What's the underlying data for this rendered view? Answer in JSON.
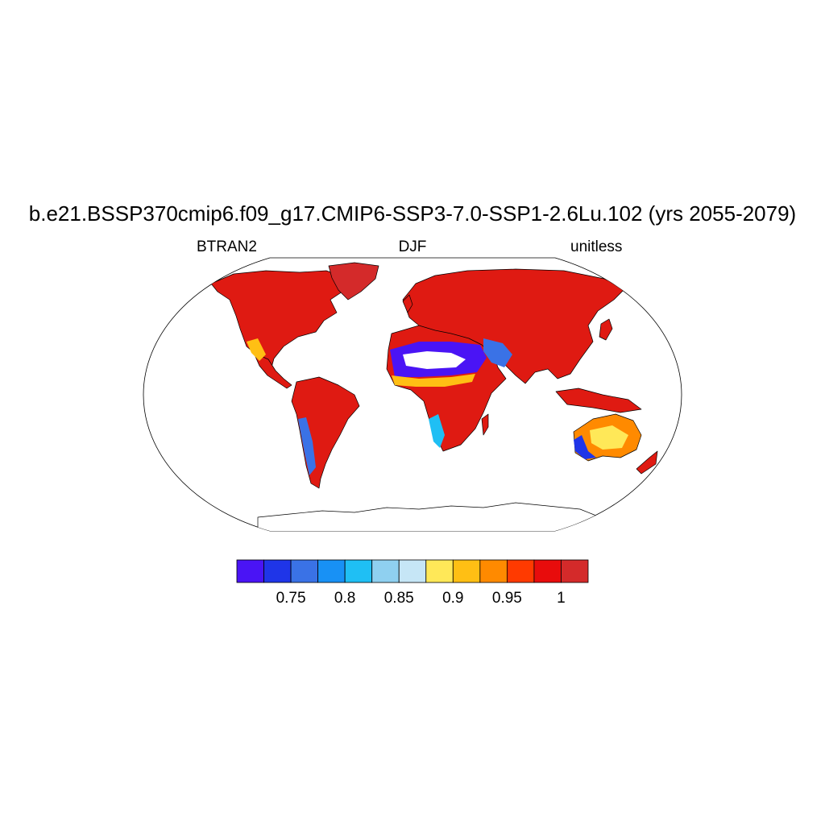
{
  "title": "b.e21.BSSP370cmip6.f09_g17.CMIP6-SSP3-7.0-SSP1-2.6Lu.102 (yrs 2055-2079)",
  "left_label": "BTRAN2",
  "center_label": "DJF",
  "right_label": "unitless",
  "colorbar": {
    "colors": [
      "#4a14f5",
      "#1f35e8",
      "#3a72e6",
      "#1891f5",
      "#1fbff4",
      "#8fd0f0",
      "#c6e6f6",
      "#ffe858",
      "#ffbf14",
      "#ff8a00",
      "#ff3a00",
      "#e80c0c",
      "#d42a2a"
    ],
    "tick_labels": [
      "0.75",
      "0.8",
      "0.85",
      "0.9",
      "0.95",
      "1"
    ]
  },
  "map": {
    "projection": "Robinson",
    "coastlines": true,
    "variable": "BTRAN2",
    "season": "DJF"
  }
}
